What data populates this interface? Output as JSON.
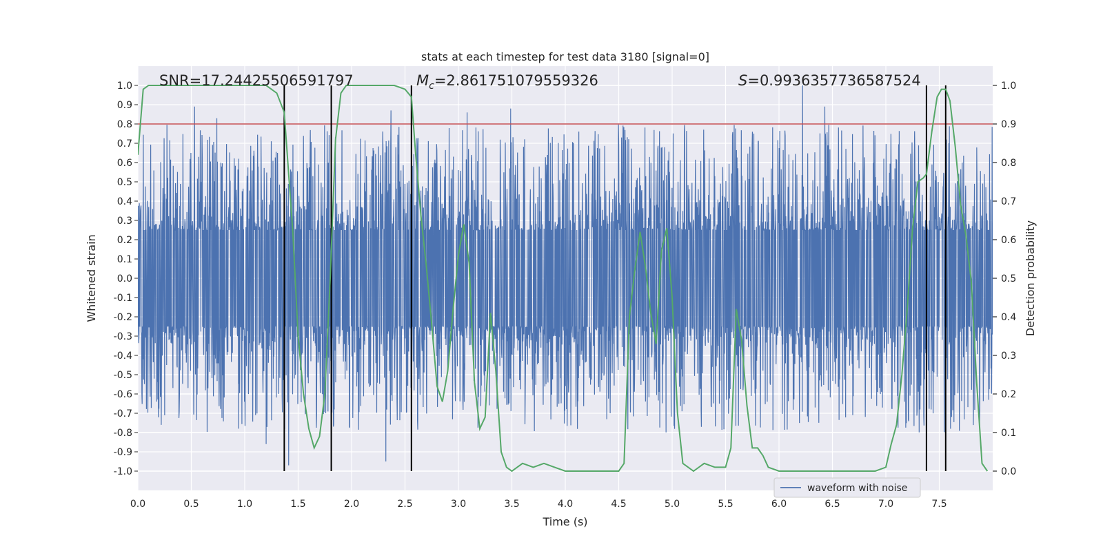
{
  "chart_data": {
    "type": "line",
    "title": "stats at each timestep for test data 3180 [signal=0]",
    "xlabel": "Time (s)",
    "ylabel_left": "Whitened strain",
    "ylabel_right": "Detection probability",
    "xlim": [
      0.0,
      8.0
    ],
    "ylim_left": [
      -1.1,
      1.1
    ],
    "ylim_right": [
      -0.05,
      1.05
    ],
    "xticks": [
      "0.0",
      "0.5",
      "1.0",
      "1.5",
      "2.0",
      "2.5",
      "3.0",
      "3.5",
      "4.0",
      "4.5",
      "5.0",
      "5.5",
      "6.0",
      "6.5",
      "7.0",
      "7.5"
    ],
    "xtick_values": [
      0,
      0.5,
      1,
      1.5,
      2,
      2.5,
      3,
      3.5,
      4,
      4.5,
      5,
      5.5,
      6,
      6.5,
      7,
      7.5
    ],
    "yticks_left": [
      "-1.0",
      "-0.9",
      "-0.8",
      "-0.7",
      "-0.6",
      "-0.5",
      "-0.4",
      "-0.3",
      "-0.2",
      "-0.1",
      "0.0",
      "0.1",
      "0.2",
      "0.3",
      "0.4",
      "0.5",
      "0.6",
      "0.7",
      "0.8",
      "0.9",
      "1.0"
    ],
    "ytick_left_values": [
      -1,
      -0.9,
      -0.8,
      -0.7,
      -0.6,
      -0.5,
      -0.4,
      -0.3,
      -0.2,
      -0.1,
      0,
      0.1,
      0.2,
      0.3,
      0.4,
      0.5,
      0.6,
      0.7,
      0.8,
      0.9,
      1.0
    ],
    "yticks_right": [
      "0.0",
      "0.1",
      "0.2",
      "0.3",
      "0.4",
      "0.5",
      "0.6",
      "0.7",
      "0.8",
      "0.9",
      "1.0"
    ],
    "ytick_right_values": [
      0,
      0.1,
      0.2,
      0.3,
      0.4,
      0.5,
      0.6,
      0.7,
      0.8,
      0.9,
      1.0
    ],
    "threshold_right": 0.9,
    "vertical_lines_x": [
      1.37,
      1.81,
      2.56,
      7.38,
      7.56
    ],
    "annotations": {
      "snr": "SNR=17.24425506591797",
      "mc_prefix": "M",
      "mc_sub": "c",
      "mc_value": "=2.861751079559326",
      "s_prefix": "S",
      "s_value": "=0.9936357736587524"
    },
    "legend": {
      "label": "waveform with noise",
      "position": "lower right"
    },
    "series": [
      {
        "name": "waveform with noise",
        "axis": "left",
        "description": "noisy whitened strain, approx. amplitude 0.25-1.0, sampled densely over 0-8 s",
        "peaks": [
          {
            "x": 0.53,
            "y": 0.89
          },
          {
            "x": 0.74,
            "y": 0.83
          },
          {
            "x": 2.37,
            "y": 0.87
          },
          {
            "x": 3.08,
            "y": 0.86
          },
          {
            "x": 3.49,
            "y": 0.88
          },
          {
            "x": 6.22,
            "y": 1.0
          },
          {
            "x": 6.43,
            "y": 0.89
          },
          {
            "x": 1.41,
            "y": -0.97
          },
          {
            "x": 2.32,
            "y": -0.95
          },
          {
            "x": 1.2,
            "y": -0.86
          }
        ]
      },
      {
        "name": "detection probability",
        "axis": "right",
        "x": [
          0.0,
          0.05,
          0.1,
          0.15,
          0.2,
          0.3,
          0.4,
          0.5,
          0.6,
          0.7,
          0.8,
          0.9,
          1.0,
          1.1,
          1.2,
          1.25,
          1.3,
          1.37,
          1.45,
          1.5,
          1.55,
          1.6,
          1.65,
          1.7,
          1.75,
          1.8,
          1.85,
          1.9,
          1.95,
          2.0,
          2.1,
          2.2,
          2.3,
          2.4,
          2.5,
          2.56,
          2.6,
          2.65,
          2.7,
          2.75,
          2.8,
          2.85,
          2.9,
          2.95,
          3.0,
          3.05,
          3.1,
          3.15,
          3.2,
          3.25,
          3.3,
          3.35,
          3.4,
          3.45,
          3.5,
          3.6,
          3.7,
          3.8,
          3.9,
          4.0,
          4.1,
          4.2,
          4.3,
          4.4,
          4.5,
          4.55,
          4.6,
          4.65,
          4.7,
          4.75,
          4.8,
          4.85,
          4.9,
          4.95,
          5.0,
          5.05,
          5.1,
          5.2,
          5.3,
          5.4,
          5.5,
          5.55,
          5.6,
          5.65,
          5.7,
          5.75,
          5.8,
          5.85,
          5.9,
          6.0,
          6.1,
          6.2,
          6.3,
          6.4,
          6.5,
          6.6,
          6.7,
          6.8,
          6.9,
          7.0,
          7.05,
          7.1,
          7.15,
          7.2,
          7.25,
          7.3,
          7.35,
          7.38,
          7.43,
          7.48,
          7.52,
          7.56,
          7.6,
          7.65,
          7.7,
          7.75,
          7.8,
          7.85,
          7.9,
          7.95
        ],
        "y": [
          0.82,
          0.99,
          1.0,
          1.0,
          1.0,
          1.0,
          1.0,
          1.0,
          1.0,
          1.0,
          1.0,
          1.0,
          1.0,
          1.0,
          1.0,
          0.99,
          0.98,
          0.93,
          0.62,
          0.35,
          0.2,
          0.11,
          0.06,
          0.09,
          0.2,
          0.5,
          0.86,
          0.98,
          1.0,
          1.0,
          1.0,
          1.0,
          1.0,
          1.0,
          0.99,
          0.97,
          0.82,
          0.66,
          0.53,
          0.38,
          0.22,
          0.18,
          0.26,
          0.42,
          0.56,
          0.64,
          0.54,
          0.23,
          0.11,
          0.14,
          0.41,
          0.26,
          0.05,
          0.01,
          0.0,
          0.02,
          0.01,
          0.02,
          0.01,
          0.0,
          0.0,
          0.0,
          0.0,
          0.0,
          0.0,
          0.02,
          0.4,
          0.52,
          0.62,
          0.53,
          0.41,
          0.33,
          0.57,
          0.63,
          0.45,
          0.15,
          0.02,
          0.0,
          0.02,
          0.01,
          0.01,
          0.06,
          0.42,
          0.34,
          0.17,
          0.06,
          0.06,
          0.04,
          0.01,
          0.0,
          0.0,
          0.0,
          0.0,
          0.0,
          0.0,
          0.0,
          0.0,
          0.0,
          0.0,
          0.01,
          0.07,
          0.12,
          0.25,
          0.42,
          0.63,
          0.75,
          0.76,
          0.77,
          0.88,
          0.97,
          0.99,
          0.99,
          0.96,
          0.84,
          0.69,
          0.61,
          0.49,
          0.23,
          0.02,
          0.0
        ],
        "color": "#55a868"
      }
    ]
  },
  "colors": {
    "waveform": "#4c72b0",
    "probability": "#55a868",
    "threshold": "#c44e52",
    "vlines": "#000000",
    "axes_bg": "#eaeaf2",
    "grid": "#ffffff"
  }
}
